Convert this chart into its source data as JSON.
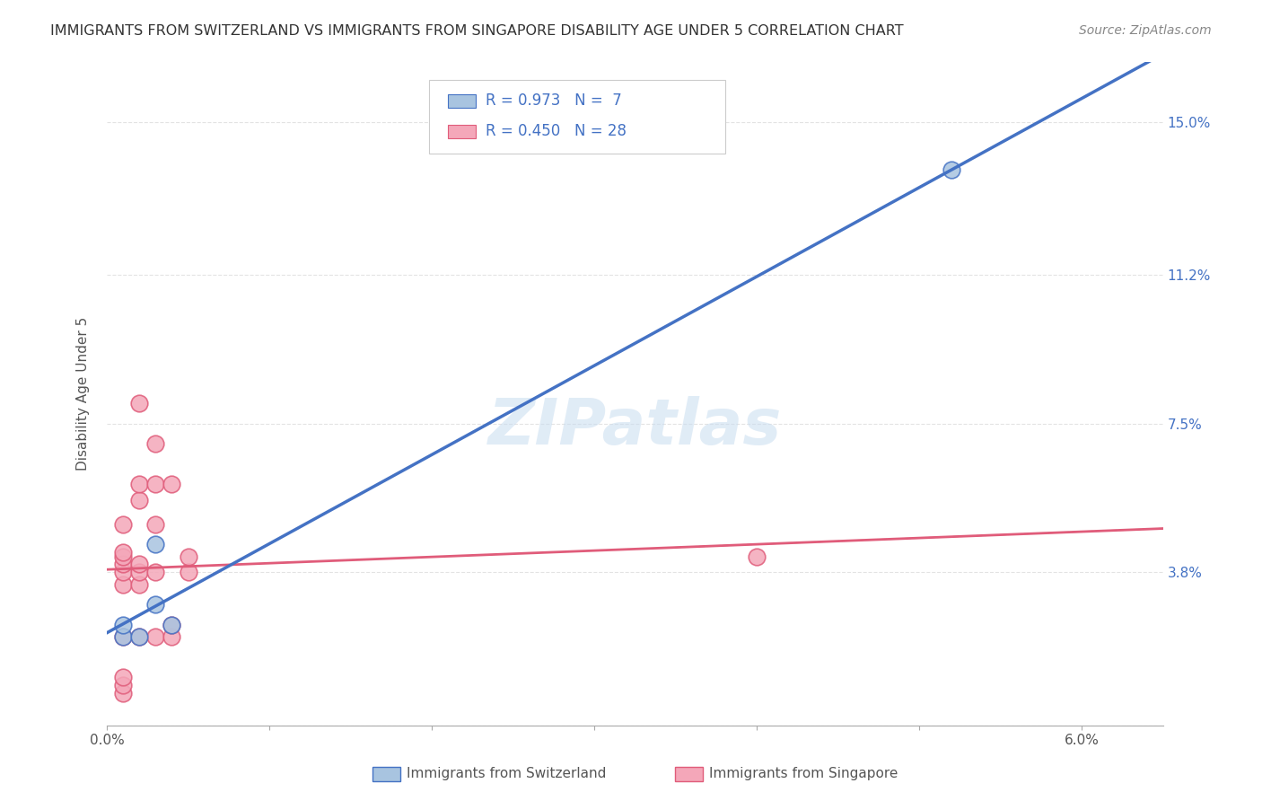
{
  "title": "IMMIGRANTS FROM SWITZERLAND VS IMMIGRANTS FROM SINGAPORE DISABILITY AGE UNDER 5 CORRELATION CHART",
  "source": "Source: ZipAtlas.com",
  "ylabel": "Disability Age Under 5",
  "x_tick_labels": [
    "0.0%",
    "",
    "",
    "",
    "",
    "",
    "6.0%"
  ],
  "y_tick_labels": [
    "",
    "3.8%",
    "7.5%",
    "11.2%",
    "15.0%"
  ],
  "y_ticks": [
    0.0,
    0.038,
    0.075,
    0.112,
    0.15
  ],
  "xlim": [
    0.0,
    0.065
  ],
  "ylim": [
    0.0,
    0.165
  ],
  "switzerland_color": "#a8c4e0",
  "singapore_color": "#f4a7b9",
  "switzerland_line_color": "#4472c4",
  "singapore_line_color": "#e05c7a",
  "R_switzerland": 0.973,
  "N_switzerland": 7,
  "R_singapore": 0.45,
  "N_singapore": 28,
  "legend_label_switzerland": "Immigrants from Switzerland",
  "legend_label_singapore": "Immigrants from Singapore",
  "switzerland_scatter": [
    [
      0.001,
      0.022
    ],
    [
      0.001,
      0.025
    ],
    [
      0.002,
      0.022
    ],
    [
      0.003,
      0.045
    ],
    [
      0.003,
      0.03
    ],
    [
      0.004,
      0.025
    ],
    [
      0.052,
      0.138
    ]
  ],
  "singapore_scatter": [
    [
      0.001,
      0.008
    ],
    [
      0.001,
      0.01
    ],
    [
      0.001,
      0.012
    ],
    [
      0.001,
      0.022
    ],
    [
      0.001,
      0.035
    ],
    [
      0.001,
      0.038
    ],
    [
      0.001,
      0.04
    ],
    [
      0.001,
      0.042
    ],
    [
      0.001,
      0.043
    ],
    [
      0.001,
      0.05
    ],
    [
      0.002,
      0.022
    ],
    [
      0.002,
      0.035
    ],
    [
      0.002,
      0.038
    ],
    [
      0.002,
      0.04
    ],
    [
      0.002,
      0.056
    ],
    [
      0.002,
      0.06
    ],
    [
      0.002,
      0.08
    ],
    [
      0.003,
      0.022
    ],
    [
      0.003,
      0.038
    ],
    [
      0.003,
      0.05
    ],
    [
      0.003,
      0.06
    ],
    [
      0.003,
      0.07
    ],
    [
      0.004,
      0.022
    ],
    [
      0.004,
      0.025
    ],
    [
      0.004,
      0.06
    ],
    [
      0.005,
      0.038
    ],
    [
      0.005,
      0.042
    ],
    [
      0.04,
      0.042
    ]
  ],
  "watermark": "ZIPatlas",
  "background_color": "#ffffff",
  "grid_color": "#dddddd",
  "title_color": "#333333",
  "axis_label_color": "#555555",
  "tick_color_right": "#4472c4"
}
